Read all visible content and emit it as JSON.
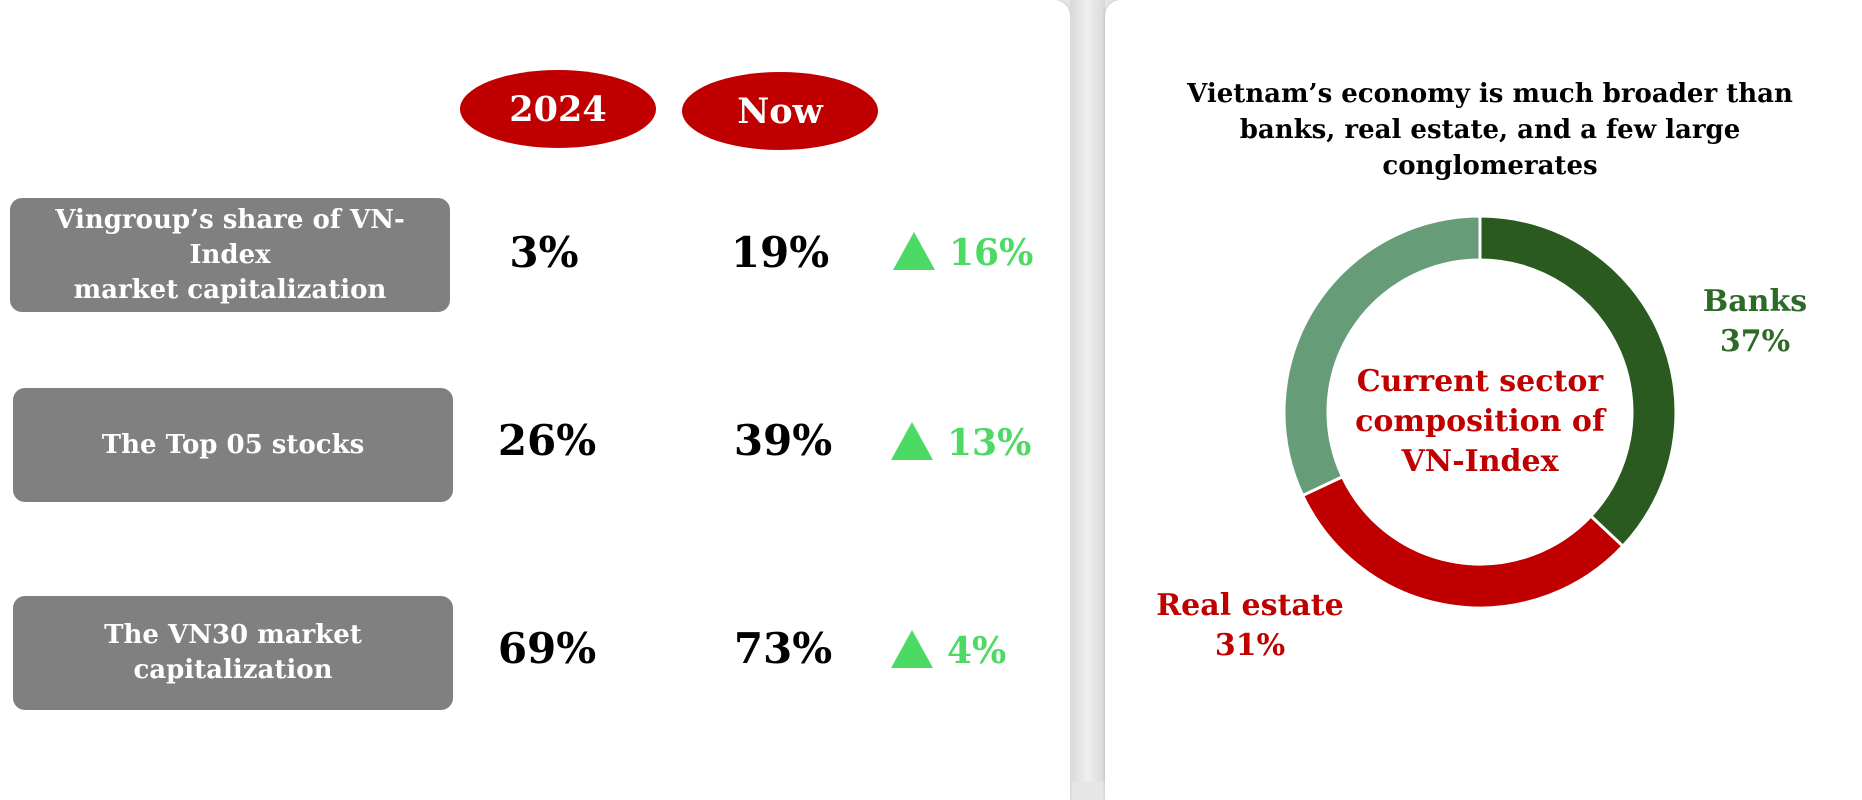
{
  "table": {
    "columns": [
      "2024",
      "Now"
    ],
    "rows": [
      {
        "label_line1": "Vingroup’s share of VN-Index",
        "label_line2": "market capitalization",
        "v2024": "3%",
        "now": "19%",
        "change": "16%"
      },
      {
        "label_line1": "The Top 05 stocks",
        "label_line2": "",
        "v2024": "26%",
        "now": "39%",
        "change": "13%"
      },
      {
        "label_line1": "The VN30 market",
        "label_line2": "capitalization",
        "v2024": "69%",
        "now": "73%",
        "change": "4%"
      }
    ],
    "colors": {
      "pill": "#c00000",
      "label_box": "#808080",
      "increase": "#4cd964"
    }
  },
  "chart_data": {
    "type": "pie",
    "title": "Vietnam’s economy is much broader than banks, real estate, and a few large conglomerates",
    "center_text": [
      "Current sector",
      "composition of",
      "VN-Index"
    ],
    "slices": [
      {
        "name": "Banks",
        "value": 37,
        "label": "37%",
        "color": "#2a5a1f"
      },
      {
        "name": "Real estate",
        "value": 31,
        "label": "31%",
        "color": "#c00000"
      },
      {
        "name": "",
        "value": 32,
        "label": "",
        "color": "#679c79"
      }
    ]
  }
}
